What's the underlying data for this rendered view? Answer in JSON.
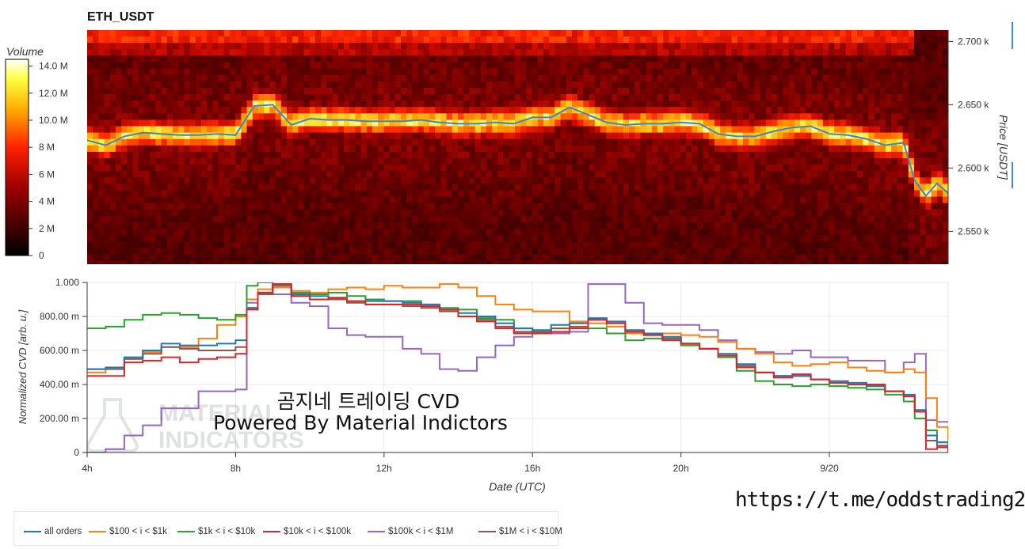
{
  "title": "ETH_USDT",
  "colorbar": {
    "title": "Volume",
    "ticks": [
      "0",
      "2 M",
      "4 M",
      "6 M",
      "8 M",
      "10.0 M",
      "12.0 M",
      "14.0 M"
    ],
    "range": [
      0,
      14.5
    ]
  },
  "heatmap_axis": {
    "label": "Price [USDT]",
    "ticks": [
      "2.550 k",
      "2.600 k",
      "2.650 k",
      "2.700 k"
    ],
    "tick_values": [
      2550,
      2600,
      2650,
      2700
    ],
    "range": [
      2524,
      2709
    ]
  },
  "cvd_axis": {
    "ylabel": "Normalized CVD [arb. u.]",
    "yticks": [
      "0",
      "200.00 m",
      "400.00 m",
      "600.00 m",
      "800.00 m",
      "1.000"
    ],
    "ytick_values": [
      0,
      0.2,
      0.4,
      0.6,
      0.8,
      1.0
    ],
    "xlabel": "Date (UTC)",
    "xticks": [
      "4h",
      "8h",
      "12h",
      "16h",
      "20h",
      "9/20"
    ],
    "xtick_values": [
      4,
      8,
      12,
      16,
      20,
      24
    ],
    "xrange": [
      4,
      27.2
    ]
  },
  "watermark": {
    "line1": "곰지네 트레이딩 CVD",
    "line2": "Powered By Material Indictors",
    "logo_line1": "MATERIAL",
    "logo_line2": "INDICATORS"
  },
  "footer_url": "https://t.me/oddstrading2",
  "chart_data": [
    {
      "type": "heatmap",
      "title": "ETH_USDT",
      "ylabel": "Price [USDT]",
      "x_range_hours": [
        4,
        27.2
      ],
      "price_range": [
        2524,
        2709
      ],
      "colorbar_label": "Volume",
      "price_line": {
        "x": [
          4,
          4.5,
          5,
          5.5,
          6,
          6.5,
          7,
          7.5,
          8,
          8.5,
          9,
          9.5,
          10,
          10.5,
          11,
          11.5,
          12,
          12.5,
          13,
          13.5,
          14,
          14.5,
          15,
          15.5,
          16,
          16.5,
          17,
          17.5,
          18,
          18.5,
          19,
          19.5,
          20,
          20.5,
          21,
          21.5,
          22,
          22.5,
          23,
          23.5,
          24,
          24.5,
          25,
          25.5,
          26,
          26.3,
          26.6,
          26.9,
          27.2
        ],
        "y": [
          2622,
          2618,
          2625,
          2628,
          2627,
          2626,
          2626,
          2627,
          2626,
          2649,
          2650,
          2634,
          2639,
          2638,
          2638,
          2637,
          2637,
          2637,
          2638,
          2636,
          2635,
          2635,
          2636,
          2635,
          2640,
          2640,
          2648,
          2642,
          2636,
          2634,
          2635,
          2635,
          2636,
          2635,
          2627,
          2625,
          2625,
          2629,
          2632,
          2633,
          2627,
          2626,
          2623,
          2618,
          2620,
          2590,
          2578,
          2588,
          2580
        ]
      }
    },
    {
      "type": "line",
      "xlabel": "Date (UTC)",
      "ylabel": "Normalized CVD [arb. u.]",
      "ylim": [
        0,
        1.0
      ],
      "x": [
        4,
        4.5,
        5,
        5.5,
        6,
        6.5,
        7,
        7.5,
        8,
        8.3,
        8.6,
        9,
        9.5,
        10,
        10.5,
        11,
        11.5,
        12,
        12.5,
        13,
        13.5,
        14,
        14.5,
        15,
        15.5,
        16,
        16.5,
        17,
        17.5,
        18,
        18.5,
        19,
        19.5,
        20,
        20.5,
        21,
        21.5,
        22,
        22.5,
        23,
        23.5,
        24,
        24.5,
        25,
        25.5,
        26,
        26.3,
        26.6,
        26.9,
        27.2
      ],
      "series": [
        {
          "name": "all orders",
          "color": "#1f77b4",
          "values": [
            0.49,
            0.5,
            0.56,
            0.6,
            0.64,
            0.63,
            0.63,
            0.64,
            0.66,
            0.85,
            0.94,
            0.99,
            0.93,
            0.92,
            0.91,
            0.89,
            0.89,
            0.89,
            0.88,
            0.87,
            0.84,
            0.82,
            0.8,
            0.76,
            0.73,
            0.72,
            0.75,
            0.76,
            0.79,
            0.77,
            0.72,
            0.7,
            0.68,
            0.64,
            0.61,
            0.58,
            0.52,
            0.47,
            0.45,
            0.45,
            0.43,
            0.42,
            0.41,
            0.39,
            0.36,
            0.34,
            0.25,
            0.1,
            0.06,
            0.02
          ]
        },
        {
          "name": "$100 < i < $1k",
          "color": "#ff7f0e",
          "values": [
            0.47,
            0.5,
            0.55,
            0.59,
            0.62,
            0.62,
            0.67,
            0.75,
            0.8,
            0.9,
            0.96,
            0.97,
            0.95,
            0.94,
            0.96,
            0.97,
            0.96,
            0.98,
            0.97,
            0.97,
            0.99,
            0.97,
            0.92,
            0.87,
            0.84,
            0.83,
            0.83,
            0.77,
            0.76,
            0.74,
            0.7,
            0.7,
            0.7,
            0.69,
            0.68,
            0.65,
            0.61,
            0.58,
            0.53,
            0.51,
            0.52,
            0.53,
            0.5,
            0.48,
            0.47,
            0.49,
            0.47,
            0.32,
            0.15,
            0.02
          ]
        },
        {
          "name": "$1k < i < $10k",
          "color": "#2ca02c",
          "values": [
            0.73,
            0.74,
            0.78,
            0.81,
            0.82,
            0.81,
            0.79,
            0.78,
            0.81,
            0.98,
            1.0,
            0.99,
            0.94,
            0.93,
            0.94,
            0.92,
            0.9,
            0.89,
            0.89,
            0.87,
            0.85,
            0.84,
            0.79,
            0.78,
            0.73,
            0.71,
            0.73,
            0.76,
            0.73,
            0.7,
            0.66,
            0.67,
            0.67,
            0.63,
            0.61,
            0.56,
            0.48,
            0.42,
            0.4,
            0.39,
            0.4,
            0.39,
            0.38,
            0.37,
            0.34,
            0.3,
            0.2,
            0.13,
            0.06,
            0.01
          ]
        },
        {
          "name": "$10k < i < $100k",
          "color": "#d62728",
          "values": [
            0.45,
            0.45,
            0.53,
            0.54,
            0.56,
            0.53,
            0.55,
            0.56,
            0.58,
            0.84,
            0.94,
            0.99,
            0.92,
            0.9,
            0.91,
            0.89,
            0.87,
            0.87,
            0.87,
            0.86,
            0.84,
            0.8,
            0.77,
            0.73,
            0.7,
            0.7,
            0.71,
            0.73,
            0.78,
            0.76,
            0.71,
            0.69,
            0.66,
            0.64,
            0.61,
            0.57,
            0.5,
            0.47,
            0.44,
            0.46,
            0.43,
            0.41,
            0.4,
            0.4,
            0.36,
            0.33,
            0.24,
            0.02,
            0.03,
            0.0
          ]
        },
        {
          "name": "$100k < i < $1M",
          "color": "#9467bd",
          "values": [
            0.0,
            0.02,
            0.1,
            0.16,
            0.26,
            0.26,
            0.36,
            0.36,
            0.37,
            0.88,
            0.94,
            0.93,
            0.88,
            0.86,
            0.73,
            0.69,
            0.68,
            0.68,
            0.61,
            0.58,
            0.49,
            0.48,
            0.56,
            0.63,
            0.68,
            0.7,
            0.7,
            0.71,
            0.99,
            0.99,
            0.88,
            0.76,
            0.75,
            0.75,
            0.72,
            0.66,
            0.61,
            0.59,
            0.58,
            0.6,
            0.56,
            0.56,
            0.54,
            0.54,
            0.47,
            0.53,
            0.58,
            0.19,
            0.18,
            0.18
          ]
        },
        {
          "name": "$1M < i < $10M",
          "color": "#8c564b",
          "values": [
            0.49,
            0.49,
            0.55,
            0.58,
            0.62,
            0.61,
            0.6,
            0.6,
            0.62,
            0.85,
            0.93,
            0.98,
            0.92,
            0.9,
            0.9,
            0.88,
            0.87,
            0.87,
            0.86,
            0.85,
            0.83,
            0.8,
            0.78,
            0.74,
            0.71,
            0.71,
            0.73,
            0.74,
            0.78,
            0.76,
            0.71,
            0.69,
            0.67,
            0.64,
            0.61,
            0.57,
            0.51,
            0.47,
            0.45,
            0.45,
            0.43,
            0.41,
            0.4,
            0.39,
            0.36,
            0.33,
            0.24,
            0.07,
            0.04,
            0.01
          ]
        }
      ],
      "legend_placement": "bottom"
    }
  ]
}
